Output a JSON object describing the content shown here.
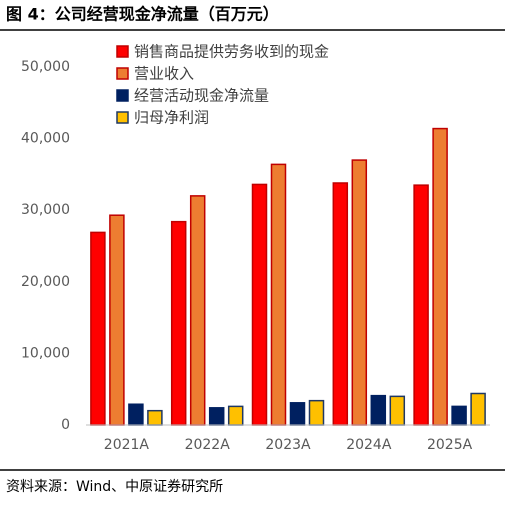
{
  "chart_data": {
    "type": "bar",
    "title": "图 4：公司经营现金净流量（百万元）",
    "source": "资料来源：Wind、中原证券研究所",
    "categories": [
      "2021A",
      "2022A",
      "2023A",
      "2024A",
      "2025A"
    ],
    "series": [
      {
        "name": "销售商品提供劳务收到的现金",
        "color": "#ff0000",
        "border": "#c00000",
        "values": [
          26900,
          28400,
          33600,
          33800,
          33500
        ]
      },
      {
        "name": "营业收入",
        "color": "#ed7d31",
        "border": "#c00000",
        "values": [
          29300,
          32000,
          36400,
          37000,
          41400
        ]
      },
      {
        "name": "经营活动现金净流量",
        "color": "#002060",
        "border": "#002060",
        "values": [
          2900,
          2400,
          3100,
          4100,
          2600
        ]
      },
      {
        "name": "归母净利润",
        "color": "#ffc000",
        "border": "#1f3864",
        "values": [
          2000,
          2600,
          3400,
          4000,
          4400
        ]
      }
    ],
    "ylim": [
      0,
      50000
    ],
    "yticks": [
      0,
      {
        "value": 10000,
        "label": "10,000"
      },
      {
        "value": 20000,
        "label": "20,000"
      },
      {
        "value": 30000,
        "label": "30,000"
      },
      {
        "value": 40000,
        "label": "40,000"
      },
      {
        "value": 50000,
        "label": "50,000"
      }
    ],
    "grid": false
  }
}
